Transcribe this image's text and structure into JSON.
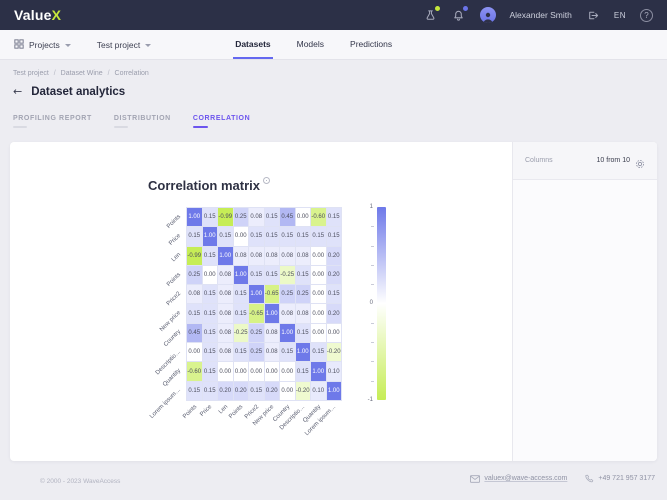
{
  "topbar": {
    "logo_value": "Value",
    "logo_x": "X",
    "user_name": "Alexander Smith",
    "language": "EN",
    "help_label": "?"
  },
  "subnav": {
    "projects_label": "Projects",
    "project_selector_value": "Test project",
    "tabs": [
      {
        "label": "Datasets",
        "active": true
      },
      {
        "label": "Models",
        "active": false
      },
      {
        "label": "Predictions",
        "active": false
      }
    ]
  },
  "breadcrumb": {
    "items": [
      "Test project",
      "Dataset Wine",
      "Correlation"
    ],
    "separator": "/"
  },
  "page": {
    "back_arrow": "←",
    "title": "Dataset analytics"
  },
  "section_tabs": [
    {
      "label": "PROFILING REPORT",
      "active": false
    },
    {
      "label": "DISTRIBUTION",
      "active": false
    },
    {
      "label": "CORRELATION",
      "active": true
    }
  ],
  "sidebar": {
    "columns_label": "Columns",
    "columns_value": "10 from 10"
  },
  "chart_data": {
    "type": "heatmap",
    "title": "Correlation matrix",
    "labels": [
      "Points",
      "Price",
      "Len",
      "Points",
      "Price2",
      "New price",
      "Country",
      "Descriptio…",
      "Quantity",
      "Lorem ipsum…"
    ],
    "matrix": [
      [
        1.0,
        0.15,
        -0.99,
        0.25,
        0.08,
        0.15,
        0.45,
        0.0,
        -0.6,
        0.15
      ],
      [
        0.15,
        1.0,
        0.15,
        0.0,
        0.15,
        0.15,
        0.15,
        0.15,
        0.15,
        0.15
      ],
      [
        -0.99,
        0.15,
        1.0,
        0.08,
        0.08,
        0.08,
        0.08,
        0.08,
        0.0,
        0.2
      ],
      [
        0.25,
        0.0,
        0.08,
        1.0,
        0.15,
        0.15,
        -0.25,
        0.15,
        0.0,
        0.2
      ],
      [
        0.08,
        0.15,
        0.08,
        0.15,
        1.0,
        -0.65,
        0.25,
        0.25,
        0.0,
        0.15
      ],
      [
        0.15,
        0.15,
        0.08,
        0.15,
        -0.65,
        1.0,
        0.08,
        0.08,
        0.0,
        0.2
      ],
      [
        0.45,
        0.15,
        0.08,
        -0.25,
        0.25,
        0.08,
        1.0,
        0.15,
        0.0,
        0.0
      ],
      [
        0.0,
        0.15,
        0.08,
        0.15,
        0.25,
        0.08,
        0.15,
        1.0,
        0.15,
        -0.2
      ],
      [
        -0.6,
        0.15,
        0.0,
        0.0,
        0.0,
        0.0,
        0.0,
        0.15,
        1.0,
        0.1
      ],
      [
        0.15,
        0.15,
        0.2,
        0.2,
        0.15,
        0.2,
        0.0,
        -0.2,
        0.1,
        1.0
      ]
    ],
    "value_range": [
      -1,
      1
    ],
    "colorbar": {
      "max_label": "1",
      "mid_label": "0",
      "min_label": "-1",
      "positive_color": "#6e79e9",
      "negative_color": "#c6ed55",
      "zero_color": "#ffffff"
    }
  },
  "footer": {
    "copyright": "© 2000 - 2023 WaveAccess",
    "email": "valuex@wave-access.com",
    "phone": "+49 721 957 3177"
  },
  "colors": {
    "topbar_bg": "#2c3047",
    "accent_blue": "#6468f0",
    "accent_purple": "#6c55ee",
    "lime": "#c6e83c"
  }
}
